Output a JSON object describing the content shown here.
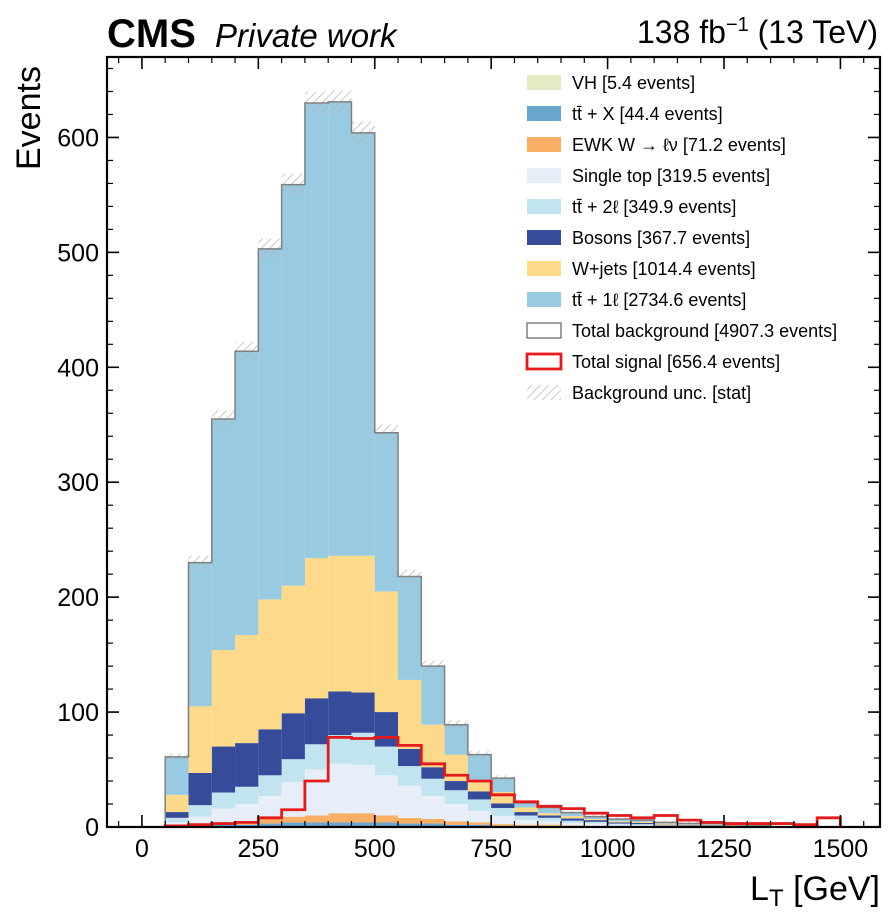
{
  "header": {
    "experiment": "CMS",
    "status": "Private work",
    "lumi_value": "138 fb",
    "lumi_exponent": "−1",
    "energy": " (13 TeV)"
  },
  "chart_data": {
    "type": "stacked-histogram",
    "xlabel_main": "L",
    "xlabel_sub": "T",
    "xlabel_unit": " [GeV]",
    "ylabel": "Events",
    "xlim": [
      -75,
      1585
    ],
    "ylim": [
      0,
      670
    ],
    "x_ticks": [
      0,
      250,
      500,
      750,
      1000,
      1250,
      1500
    ],
    "x_tick_labels": [
      "0",
      "250",
      "500",
      "750",
      "1000",
      "1250",
      "1500"
    ],
    "y_ticks": [
      0,
      100,
      200,
      300,
      400,
      500,
      600
    ],
    "y_tick_labels": [
      "0",
      "100",
      "200",
      "300",
      "400",
      "500",
      "600"
    ],
    "bin_edges": [
      50,
      100,
      150,
      200,
      250,
      300,
      350,
      400,
      450,
      500,
      550,
      600,
      650,
      700,
      750,
      800,
      850,
      900,
      950,
      1000,
      1050,
      1100,
      1150,
      1200,
      1250,
      1300,
      1350,
      1400,
      1450,
      1500
    ],
    "stack_order": "bottom-to-top",
    "series": [
      {
        "name": "VH [5.4 events]",
        "color": "#e6ebc6",
        "values": [
          0,
          0,
          0,
          0,
          0,
          0,
          0,
          0,
          0,
          0,
          0,
          0,
          0,
          0,
          0,
          0,
          0,
          0,
          0,
          0,
          0,
          0,
          0,
          0,
          0,
          0,
          0,
          0,
          0
        ]
      },
      {
        "name": "tt̄ + X [44.4 events]",
        "color": "#6aa5cd",
        "values": [
          0.5,
          1,
          2,
          2,
          3,
          4,
          4,
          4,
          4,
          4,
          3,
          3,
          2,
          2,
          1,
          1,
          1,
          1,
          0.5,
          0.5,
          0.5,
          0,
          0,
          0,
          0,
          0,
          0,
          0,
          0
        ]
      },
      {
        "name": "EWK W → ℓν [71.2 events]",
        "color": "#f9b064",
        "values": [
          0.5,
          1,
          2,
          3,
          4,
          5,
          6,
          8,
          8,
          6,
          5,
          4,
          3,
          2,
          1.5,
          1,
          1,
          0.5,
          0.5,
          0,
          0,
          0,
          0,
          0,
          0,
          0,
          0,
          0,
          0
        ]
      },
      {
        "name": "Single top [319.5 events]",
        "color": "#e8eef7",
        "values": [
          3,
          7,
          12,
          15,
          20,
          30,
          40,
          43,
          42,
          35,
          28,
          20,
          15,
          10,
          7,
          4,
          3,
          2,
          2,
          1.5,
          1,
          1,
          0.5,
          0.5,
          0.5,
          0.5,
          0,
          0,
          0
        ]
      },
      {
        "name": "tt̄ + 2ℓ [349.9 events]",
        "color": "#c1e4f0",
        "values": [
          4,
          10,
          14,
          15,
          18,
          20,
          22,
          25,
          28,
          25,
          17,
          15,
          12,
          10,
          7,
          4,
          3,
          2,
          1.5,
          1,
          1,
          0.5,
          0.5,
          0.5,
          0,
          0,
          0,
          0,
          0
        ]
      },
      {
        "name": "Bosons [367.7 events]",
        "color": "#364b9a",
        "values": [
          5,
          28,
          40,
          38,
          40,
          40,
          40,
          38,
          35,
          30,
          15,
          10,
          8,
          7,
          4,
          3,
          2,
          2,
          1.5,
          1,
          1,
          0.5,
          0.5,
          0.5,
          0.5,
          0,
          0,
          0,
          0
        ]
      },
      {
        "name": "W+jets [1014.4 events]",
        "color": "#fdd98a",
        "values": [
          15,
          58,
          84,
          94,
          113,
          111,
          122,
          118,
          119,
          105,
          60,
          37,
          23,
          10,
          10,
          4,
          2,
          2,
          1,
          1,
          1,
          1,
          0.5,
          0.5,
          0.5,
          0,
          0,
          0,
          0
        ]
      },
      {
        "name": "tt̄ + 1ℓ [2734.6 events]",
        "color": "#98cae1",
        "values": [
          33,
          125,
          201,
          247,
          305,
          349,
          396,
          395,
          368,
          138,
          90,
          51,
          26,
          22,
          12,
          4,
          5,
          3,
          2,
          2,
          1.5,
          1,
          1,
          1,
          0.5,
          0.5,
          0,
          0,
          0
        ]
      }
    ],
    "total_background": {
      "name": "Total background [4907.3 events]",
      "color": "#808080"
    },
    "signal": {
      "name": "Total signal [656.4 events]",
      "color": "#e41a1c",
      "values": [
        1,
        2,
        3,
        4,
        8,
        15,
        40,
        78,
        77,
        78,
        71,
        55,
        45,
        40,
        28,
        22,
        18,
        16,
        12,
        10,
        8,
        10,
        6,
        4,
        3,
        3,
        3,
        2,
        8
      ]
    },
    "uncertainty": {
      "name": "Background unc. [stat]"
    },
    "legend_position": "top-right"
  }
}
